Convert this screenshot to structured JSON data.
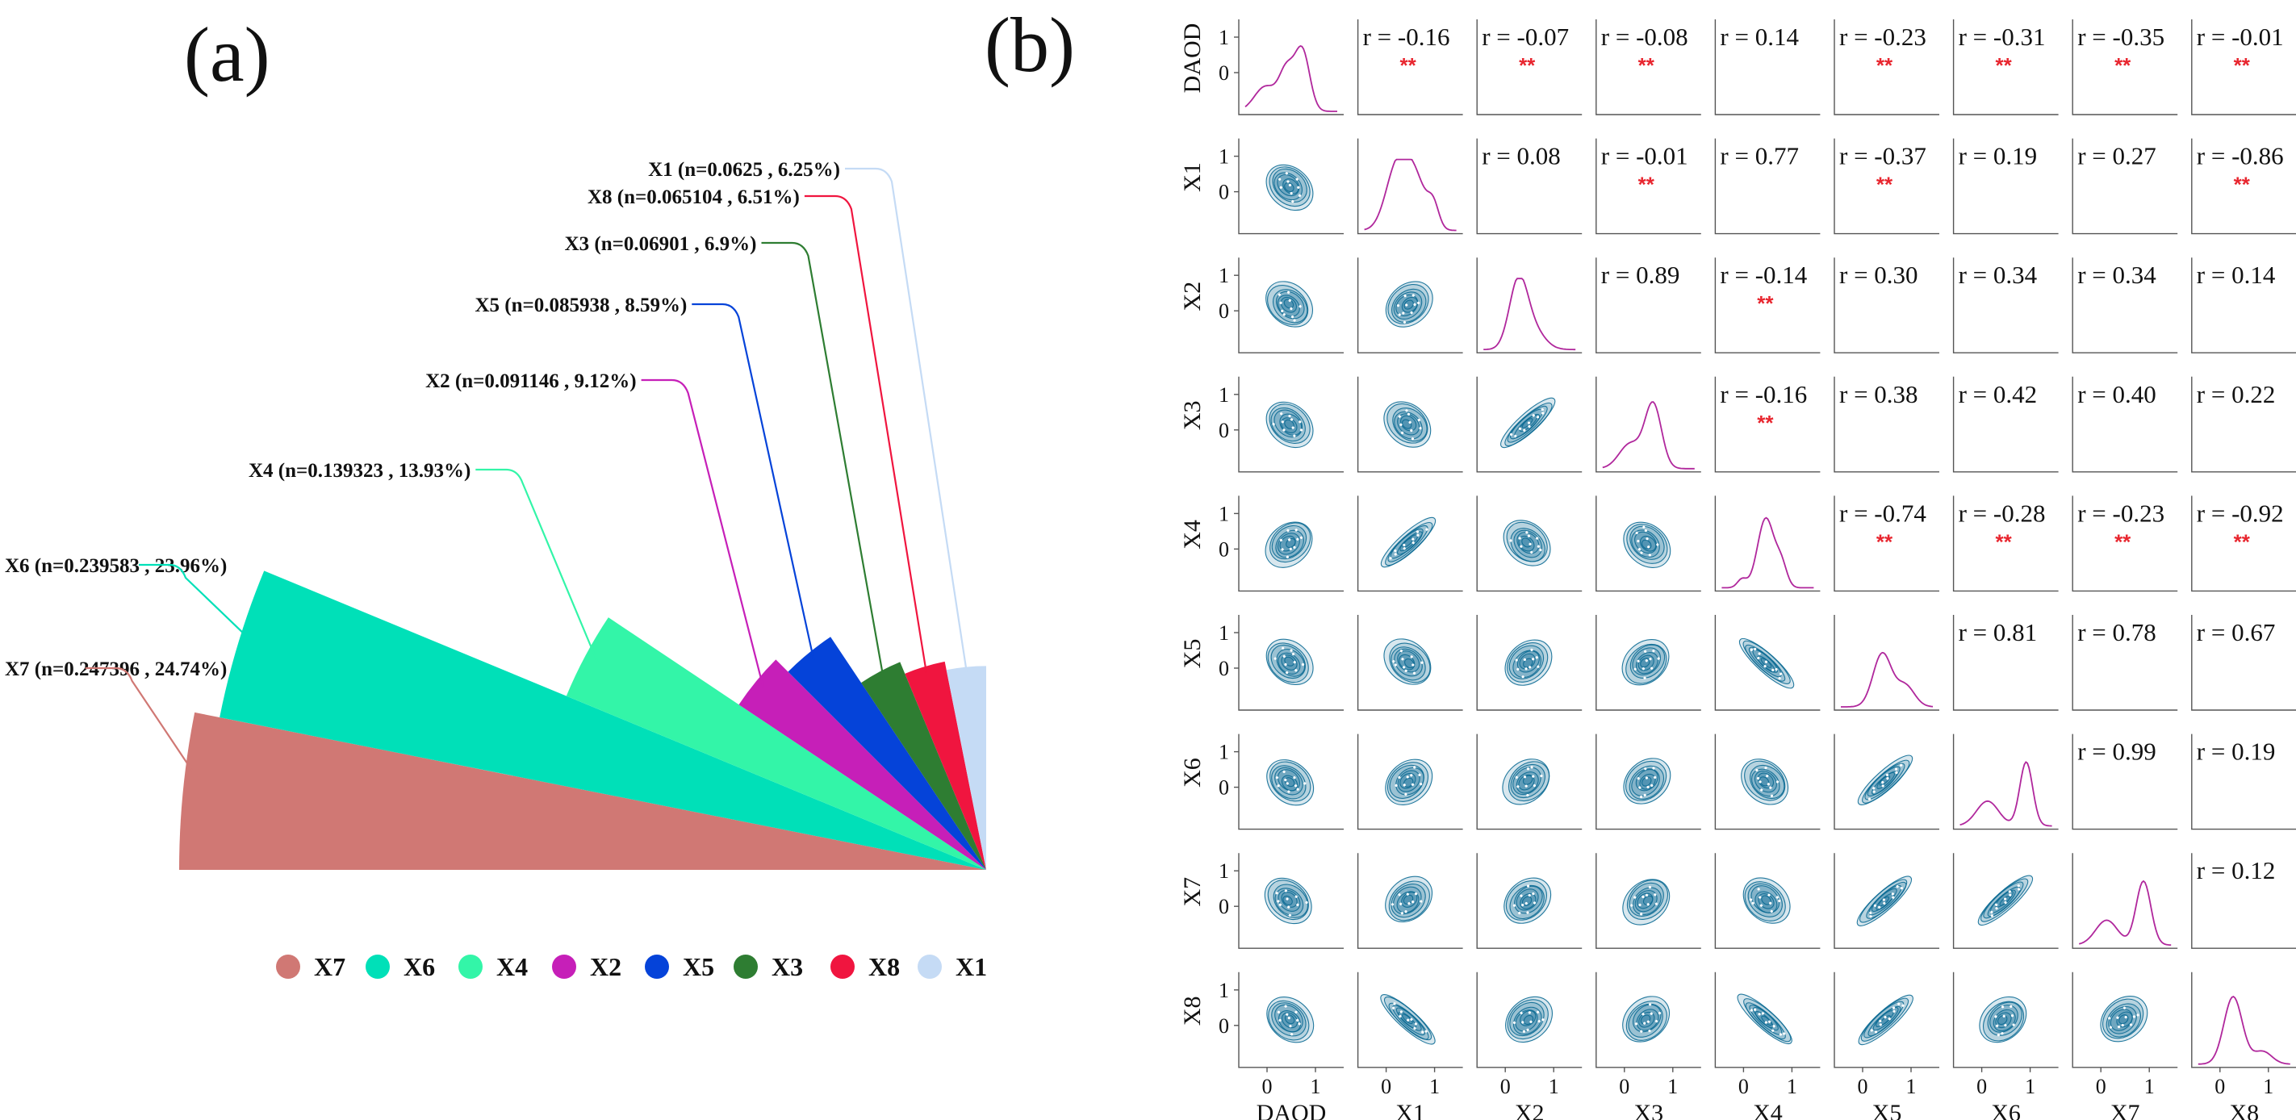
{
  "panel_labels": {
    "a": "(a)",
    "b": "(b)"
  },
  "colors": {
    "X7": "#d07874",
    "X6": "#00e0b8",
    "X4": "#33f5a8",
    "X2": "#c61fb8",
    "X5": "#0543d9",
    "X3": "#2e7d32",
    "X8": "#f0153f",
    "X1": "#c5dbf5",
    "kde": "#0b6a93",
    "diag": "#b0279c",
    "star": "#e8262f"
  },
  "chart_data": [
    {
      "type": "pie",
      "panel": "(a)",
      "slices": [
        {
          "name": "X7",
          "n": "0.247396",
          "pct": 24.74,
          "label": "X7 (n=0.247396 , 24.74%)"
        },
        {
          "name": "X6",
          "n": "0.239583",
          "pct": 23.96,
          "label": "X6 (n=0.239583 , 23.96%)"
        },
        {
          "name": "X4",
          "n": "0.139323",
          "pct": 13.93,
          "label": "X4 (n=0.139323 , 13.93%)"
        },
        {
          "name": "X2",
          "n": "0.091146",
          "pct": 9.12,
          "label": "X2 (n=0.091146 , 9.12%)"
        },
        {
          "name": "X5",
          "n": "0.085938",
          "pct": 8.59,
          "label": "X5 (n=0.085938 , 8.59%)"
        },
        {
          "name": "X3",
          "n": "0.06901",
          "pct": 6.9,
          "label": "X3 (n=0.06901 , 6.9%)"
        },
        {
          "name": "X8",
          "n": "0.065104",
          "pct": 6.51,
          "label": "X8 (n=0.065104 , 6.51%)"
        },
        {
          "name": "X1",
          "n": "0.0625",
          "pct": 6.25,
          "label": "X1 (n=0.0625 , 6.25%)"
        }
      ],
      "legend": [
        "X7",
        "X6",
        "X4",
        "X2",
        "X5",
        "X3",
        "X8",
        "X1"
      ],
      "legend_placement": "bottom"
    },
    {
      "type": "pair_plot",
      "panel": "(b)",
      "variables": [
        "DAOD",
        "X1",
        "X2",
        "X3",
        "X4",
        "X5",
        "X6",
        "X7",
        "X8"
      ],
      "diagonal": "density",
      "lower": "kde-contour",
      "upper": "correlation",
      "correlations": [
        {
          "row": 0,
          "col": 1,
          "r": "r = -0.16",
          "sig": "**"
        },
        {
          "row": 0,
          "col": 2,
          "r": "r = -0.07",
          "sig": "**"
        },
        {
          "row": 0,
          "col": 3,
          "r": "r = -0.08",
          "sig": "**"
        },
        {
          "row": 0,
          "col": 4,
          "r": "r = 0.14",
          "sig": ""
        },
        {
          "row": 0,
          "col": 5,
          "r": "r = -0.23",
          "sig": "**"
        },
        {
          "row": 0,
          "col": 6,
          "r": "r = -0.31",
          "sig": "**"
        },
        {
          "row": 0,
          "col": 7,
          "r": "r = -0.35",
          "sig": "**"
        },
        {
          "row": 0,
          "col": 8,
          "r": "r = -0.01",
          "sig": "**"
        },
        {
          "row": 1,
          "col": 2,
          "r": "r = 0.08",
          "sig": ""
        },
        {
          "row": 1,
          "col": 3,
          "r": "r = -0.01",
          "sig": "**"
        },
        {
          "row": 1,
          "col": 4,
          "r": "r = 0.77",
          "sig": ""
        },
        {
          "row": 1,
          "col": 5,
          "r": "r = -0.37",
          "sig": "**"
        },
        {
          "row": 1,
          "col": 6,
          "r": "r = 0.19",
          "sig": ""
        },
        {
          "row": 1,
          "col": 7,
          "r": "r = 0.27",
          "sig": ""
        },
        {
          "row": 1,
          "col": 8,
          "r": "r = -0.86",
          "sig": "**"
        },
        {
          "row": 2,
          "col": 3,
          "r": "r = 0.89",
          "sig": ""
        },
        {
          "row": 2,
          "col": 4,
          "r": "r = -0.14",
          "sig": "**"
        },
        {
          "row": 2,
          "col": 5,
          "r": "r = 0.30",
          "sig": ""
        },
        {
          "row": 2,
          "col": 6,
          "r": "r = 0.34",
          "sig": ""
        },
        {
          "row": 2,
          "col": 7,
          "r": "r = 0.34",
          "sig": ""
        },
        {
          "row": 2,
          "col": 8,
          "r": "r = 0.14",
          "sig": ""
        },
        {
          "row": 3,
          "col": 4,
          "r": "r = -0.16",
          "sig": "**"
        },
        {
          "row": 3,
          "col": 5,
          "r": "r = 0.38",
          "sig": ""
        },
        {
          "row": 3,
          "col": 6,
          "r": "r = 0.42",
          "sig": ""
        },
        {
          "row": 3,
          "col": 7,
          "r": "r = 0.40",
          "sig": ""
        },
        {
          "row": 3,
          "col": 8,
          "r": "r = 0.22",
          "sig": ""
        },
        {
          "row": 4,
          "col": 5,
          "r": "r = -0.74",
          "sig": "**"
        },
        {
          "row": 4,
          "col": 6,
          "r": "r = -0.28",
          "sig": "**"
        },
        {
          "row": 4,
          "col": 7,
          "r": "r = -0.23",
          "sig": "**"
        },
        {
          "row": 4,
          "col": 8,
          "r": "r = -0.92",
          "sig": "**"
        },
        {
          "row": 5,
          "col": 6,
          "r": "r = 0.81",
          "sig": ""
        },
        {
          "row": 5,
          "col": 7,
          "r": "r = 0.78",
          "sig": ""
        },
        {
          "row": 5,
          "col": 8,
          "r": "r = 0.67",
          "sig": ""
        },
        {
          "row": 6,
          "col": 7,
          "r": "r = 0.99",
          "sig": ""
        },
        {
          "row": 6,
          "col": 8,
          "r": "r = 0.19",
          "sig": ""
        },
        {
          "row": 7,
          "col": 8,
          "r": "r = 0.12",
          "sig": ""
        }
      ],
      "y_ticks": [
        "0",
        "1"
      ],
      "x_ticks": [
        "0",
        "1"
      ]
    }
  ]
}
